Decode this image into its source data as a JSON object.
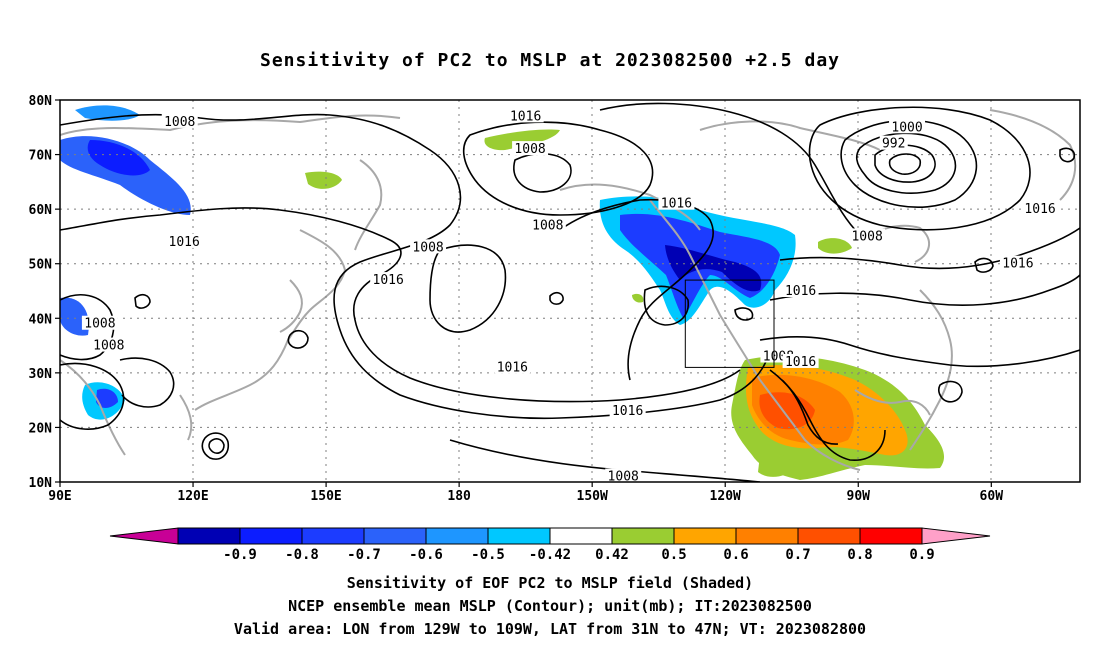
{
  "title": "Sensitivity of PC2 to MSLP at 2023082500 +2.5 day",
  "map": {
    "lat_ticks": [
      {
        "value": 80,
        "label": "80N"
      },
      {
        "value": 70,
        "label": "70N"
      },
      {
        "value": 60,
        "label": "60N"
      },
      {
        "value": 50,
        "label": "50N"
      },
      {
        "value": 40,
        "label": "40N"
      },
      {
        "value": 30,
        "label": "30N"
      },
      {
        "value": 20,
        "label": "20N"
      },
      {
        "value": 10,
        "label": "10N"
      }
    ],
    "lon_ticks": [
      {
        "value": 90,
        "label": "90E"
      },
      {
        "value": 120,
        "label": "120E"
      },
      {
        "value": 150,
        "label": "150E"
      },
      {
        "value": 180,
        "label": "180"
      },
      {
        "value": 210,
        "label": "150W"
      },
      {
        "value": 240,
        "label": "120W"
      },
      {
        "value": 270,
        "label": "90W"
      },
      {
        "value": 300,
        "label": "60W"
      }
    ],
    "lon_range": [
      90,
      320
    ],
    "lat_range": [
      10,
      80
    ],
    "contour_labels": [
      {
        "text": "1008",
        "lon": 117,
        "lat": 76
      },
      {
        "text": "1016",
        "lon": 195,
        "lat": 77
      },
      {
        "text": "1008",
        "lon": 196,
        "lat": 71
      },
      {
        "text": "1000",
        "lon": 281,
        "lat": 75
      },
      {
        "text": "992",
        "lon": 278,
        "lat": 72
      },
      {
        "text": "1016",
        "lon": 229,
        "lat": 61
      },
      {
        "text": "1008",
        "lon": 200,
        "lat": 57
      },
      {
        "text": "1016",
        "lon": 311,
        "lat": 60
      },
      {
        "text": "1016",
        "lon": 118,
        "lat": 54
      },
      {
        "text": "1008",
        "lon": 173,
        "lat": 53
      },
      {
        "text": "1008",
        "lon": 272,
        "lat": 55
      },
      {
        "text": "1016",
        "lon": 306,
        "lat": 50
      },
      {
        "text": "1016",
        "lon": 164,
        "lat": 47
      },
      {
        "text": "1016",
        "lon": 257,
        "lat": 45
      },
      {
        "text": "1008",
        "lon": 99,
        "lat": 39
      },
      {
        "text": "1008",
        "lon": 101,
        "lat": 35
      },
      {
        "text": "1016",
        "lon": 192,
        "lat": 31
      },
      {
        "text": "1008",
        "lon": 252,
        "lat": 33
      },
      {
        "text": "1016",
        "lon": 257,
        "lat": 32
      },
      {
        "text": "1016",
        "lon": 218,
        "lat": 23
      },
      {
        "text": "1008",
        "lon": 217,
        "lat": 11
      }
    ],
    "valid_box": {
      "lon_min": 231,
      "lon_max": 251,
      "lat_min": 31,
      "lat_max": 47
    }
  },
  "colorbar": {
    "labels": [
      "-0.9",
      "-0.8",
      "-0.7",
      "-0.6",
      "-0.5",
      "-0.42",
      "0.42",
      "0.5",
      "0.6",
      "0.7",
      "0.8",
      "0.9"
    ],
    "colors": [
      "#0000b4",
      "#0c1dff",
      "#1c3cff",
      "#2b62fa",
      "#1e96ff",
      "#00c8ff",
      "#ffffff",
      "#9acd32",
      "#ffa500",
      "#ff8000",
      "#ff5000",
      "#ff0000"
    ],
    "low_end_color": "#c80096",
    "high_end_color": "#ffa0c8"
  },
  "captions": {
    "line1": "Sensitivity of EOF PC2 to MSLP field (Shaded)",
    "line2": "NCEP ensemble mean MSLP (Contour); unit(mb); IT:2023082500",
    "line3": "Valid area: LON from 129W to 109W, LAT from 31N to 47N; VT: 2023082800"
  }
}
